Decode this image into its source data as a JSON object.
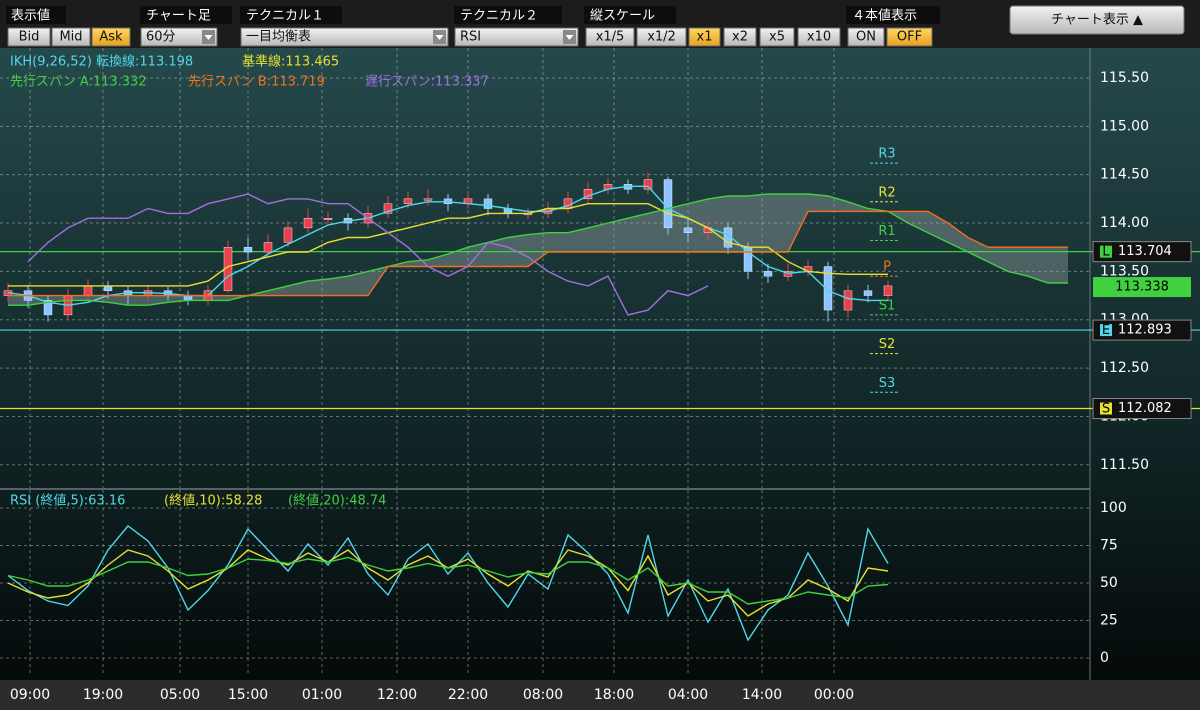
{
  "toolbar": {
    "display_value": {
      "title": "表示値",
      "options": [
        "Bid",
        "Mid",
        "Ask"
      ],
      "selected": 2
    },
    "timeframe": {
      "title": "チャート足",
      "value": "60分"
    },
    "technical1": {
      "title": "テクニカル１",
      "value": "一目均衡表"
    },
    "technical2": {
      "title": "テクニカル２",
      "value": "RSI"
    },
    "vertical_scale": {
      "title": "縦スケール",
      "options": [
        "x1/5",
        "x1/2",
        "x1",
        "x2",
        "x5",
        "x10"
      ],
      "selected": 2
    },
    "ohlc_display": {
      "title": "４本値表示",
      "options": [
        "ON",
        "OFF"
      ],
      "selected": 1
    },
    "chart_toggle": "チャート表示 ▲"
  },
  "chart_data": [
    {
      "type": "candlestick",
      "open": [
        113.25,
        113.3,
        113.2,
        113.05,
        113.25,
        113.35,
        113.3,
        113.25,
        113.3,
        113.25,
        113.2,
        113.3,
        113.75,
        113.7,
        113.8,
        113.95,
        114.05,
        114.05,
        114.0,
        114.1,
        114.2,
        114.25,
        114.25,
        114.2,
        114.25,
        114.15,
        114.1,
        114.1,
        114.15,
        114.25,
        114.35,
        114.4,
        114.35,
        114.45,
        113.95,
        113.9,
        113.95,
        113.75,
        113.5,
        113.45,
        113.5,
        113.55,
        113.1,
        113.3,
        113.25
      ],
      "high": [
        113.38,
        113.36,
        113.25,
        113.32,
        113.42,
        113.4,
        113.35,
        113.36,
        113.34,
        113.3,
        113.36,
        113.82,
        113.85,
        113.88,
        114.02,
        114.15,
        114.12,
        114.1,
        114.18,
        114.28,
        114.32,
        114.35,
        114.3,
        114.33,
        114.3,
        114.2,
        114.16,
        114.22,
        114.32,
        114.42,
        114.46,
        114.45,
        114.52,
        114.48,
        114.05,
        114.02,
        114.0,
        113.8,
        113.58,
        113.58,
        113.62,
        113.6,
        113.36,
        113.36,
        113.4
      ],
      "low": [
        113.18,
        113.12,
        112.98,
        113.0,
        113.2,
        113.22,
        113.15,
        113.2,
        113.2,
        113.15,
        113.15,
        113.28,
        113.62,
        113.65,
        113.75,
        113.9,
        113.98,
        113.92,
        113.95,
        114.05,
        114.15,
        114.18,
        114.12,
        114.15,
        114.08,
        114.05,
        114.04,
        114.05,
        114.1,
        114.2,
        114.3,
        114.3,
        114.3,
        113.88,
        113.8,
        113.82,
        113.68,
        113.42,
        113.38,
        113.4,
        113.45,
        112.98,
        113.02,
        113.18,
        113.2
      ],
      "close": [
        113.3,
        113.2,
        113.05,
        113.25,
        113.35,
        113.3,
        113.25,
        113.3,
        113.25,
        113.2,
        113.3,
        113.75,
        113.7,
        113.8,
        113.95,
        114.05,
        114.05,
        114.0,
        114.1,
        114.2,
        114.25,
        114.25,
        114.2,
        114.25,
        114.15,
        114.1,
        114.1,
        114.15,
        114.25,
        114.35,
        114.4,
        114.35,
        114.45,
        113.95,
        113.9,
        113.95,
        113.75,
        113.5,
        113.45,
        113.5,
        113.55,
        113.1,
        113.3,
        113.25,
        113.35
      ],
      "up_color": "#e8404c",
      "down_color": "#8cc4ff",
      "series": [
        {
          "name": "IKH(9,26,52) 転換線:113.198",
          "color": "#4fd8e8",
          "values": [
            113.28,
            113.25,
            113.18,
            113.15,
            113.18,
            113.25,
            113.28,
            113.28,
            113.27,
            113.25,
            113.25,
            113.45,
            113.55,
            113.68,
            113.78,
            113.88,
            113.98,
            114.02,
            114.05,
            114.12,
            114.18,
            114.22,
            114.22,
            114.2,
            114.18,
            114.15,
            114.12,
            114.12,
            114.18,
            114.28,
            114.35,
            114.38,
            114.38,
            114.15,
            114.05,
            113.95,
            113.88,
            113.7,
            113.55,
            113.48,
            113.5,
            113.3,
            113.22,
            113.2,
            113.2,
            null,
            null,
            null,
            null,
            null,
            null,
            null,
            null,
            null
          ]
        },
        {
          "name": "基準線:113.465",
          "color": "#e8e030",
          "values": [
            113.35,
            113.35,
            113.35,
            113.35,
            113.35,
            113.35,
            113.35,
            113.35,
            113.35,
            113.35,
            113.4,
            113.55,
            113.6,
            113.65,
            113.7,
            113.7,
            113.8,
            113.85,
            113.85,
            113.9,
            113.95,
            114.0,
            114.05,
            114.05,
            114.1,
            114.1,
            114.1,
            114.15,
            114.15,
            114.2,
            114.2,
            114.2,
            114.2,
            114.1,
            114.05,
            113.95,
            113.8,
            113.75,
            113.75,
            113.6,
            113.5,
            113.48,
            113.47,
            113.47,
            113.47,
            null,
            null,
            null,
            null,
            null,
            null,
            null,
            null,
            null
          ]
        },
        {
          "name": "先行スパン A:113.332",
          "color": "#40d040",
          "values": [
            113.15,
            113.15,
            113.18,
            113.2,
            113.2,
            113.18,
            113.15,
            113.15,
            113.18,
            113.2,
            113.2,
            113.2,
            113.25,
            113.3,
            113.35,
            113.4,
            113.42,
            113.45,
            113.5,
            113.55,
            113.6,
            113.62,
            113.68,
            113.75,
            113.8,
            113.85,
            113.88,
            113.9,
            113.9,
            113.95,
            114.0,
            114.05,
            114.1,
            114.15,
            114.2,
            114.25,
            114.28,
            114.28,
            114.3,
            114.3,
            114.3,
            114.28,
            114.22,
            114.15,
            114.12,
            114.0,
            113.9,
            113.8,
            113.7,
            113.6,
            113.5,
            113.45,
            113.38,
            113.38
          ]
        },
        {
          "name": "先行スパン B:113.719",
          "color": "#f07020",
          "values": [
            113.25,
            113.25,
            113.25,
            113.25,
            113.25,
            113.25,
            113.25,
            113.25,
            113.25,
            113.25,
            113.25,
            113.25,
            113.25,
            113.25,
            113.25,
            113.25,
            113.25,
            113.25,
            113.25,
            113.55,
            113.55,
            113.55,
            113.55,
            113.55,
            113.55,
            113.55,
            113.55,
            113.7,
            113.7,
            113.7,
            113.7,
            113.7,
            113.7,
            113.7,
            113.7,
            113.7,
            113.7,
            113.7,
            113.7,
            113.7,
            114.12,
            114.12,
            114.12,
            114.12,
            114.12,
            114.12,
            114.12,
            114.0,
            113.85,
            113.75,
            113.75,
            113.75,
            113.75,
            113.75
          ]
        },
        {
          "name": "遅行スパン:113.337",
          "color": "#a070e0",
          "values": [
            null,
            113.6,
            113.8,
            113.95,
            114.05,
            114.05,
            114.05,
            114.15,
            114.1,
            114.1,
            114.2,
            114.25,
            114.3,
            114.2,
            114.25,
            114.25,
            114.2,
            114.2,
            114.05,
            113.9,
            113.75,
            113.55,
            113.45,
            113.55,
            113.8,
            113.75,
            113.65,
            113.5,
            113.4,
            113.35,
            113.45,
            113.05,
            113.1,
            113.3,
            113.25,
            113.35,
            null,
            null,
            null,
            null,
            null,
            null,
            null,
            null,
            null,
            null,
            null,
            null,
            null,
            null,
            null,
            null,
            null,
            null
          ]
        }
      ],
      "cloud_color": "#b0b8b8",
      "ylim": [
        111.26,
        115.81
      ],
      "yticks": [
        {
          "value": 111.5,
          "label": "111.50"
        },
        {
          "value": 112,
          "label": "112.00"
        },
        {
          "value": 112.5,
          "label": "112.50"
        },
        {
          "value": 113,
          "label": "113.00"
        },
        {
          "value": 113.5,
          "label": "113.50"
        },
        {
          "value": 114,
          "label": "114.00"
        },
        {
          "value": 114.5,
          "label": "114.50"
        },
        {
          "value": 115,
          "label": "115.00"
        },
        {
          "value": 115.5,
          "label": "115.50"
        }
      ],
      "xlim": [
        -0.4,
        54.1
      ],
      "xticks": [
        {
          "value": 1.1,
          "label": "09:00"
        },
        {
          "value": 4.75,
          "label": "19:00"
        },
        {
          "value": 8.6,
          "label": "05:00"
        },
        {
          "value": 12,
          "label": "15:00"
        },
        {
          "value": 15.7,
          "label": "01:00"
        },
        {
          "value": 19.45,
          "label": "12:00"
        },
        {
          "value": 23,
          "label": "22:00"
        },
        {
          "value": 26.75,
          "label": "08:00"
        },
        {
          "value": 30.3,
          "label": "18:00"
        },
        {
          "value": 34,
          "label": "04:00"
        },
        {
          "value": 37.7,
          "label": "14:00"
        },
        {
          "value": 41.3,
          "label": "00:00"
        }
      ],
      "grid": true,
      "levels": [
        {
          "tag": "L",
          "value": 113.704,
          "color": "#40d040"
        },
        {
          "tag": "E",
          "value": 112.893,
          "color": "#4fd8e8"
        },
        {
          "tag": "S",
          "value": 112.082,
          "color": "#e8e030"
        }
      ],
      "current_price": {
        "value": 113.338,
        "color": "#40d040"
      },
      "pivots": [
        {
          "label": "R3",
          "value": 114.62,
          "color": "#4fd8e8"
        },
        {
          "label": "R2",
          "value": 114.22,
          "color": "#e8e030"
        },
        {
          "label": "R1",
          "value": 113.82,
          "color": "#40d040"
        },
        {
          "label": "P",
          "value": 113.45,
          "color": "#f07020"
        },
        {
          "label": "S1",
          "value": 113.05,
          "color": "#40d040"
        },
        {
          "label": "S2",
          "value": 112.65,
          "color": "#e8e030"
        },
        {
          "label": "S3",
          "value": 112.25,
          "color": "#4fd8e8"
        }
      ]
    },
    {
      "type": "line",
      "series": [
        {
          "name": "RSI (終値,5):63.16",
          "color": "#4fd8e8",
          "values": [
            55,
            45,
            38,
            35,
            48,
            72,
            88,
            78,
            60,
            32,
            45,
            62,
            86,
            72,
            58,
            76,
            62,
            80,
            56,
            42,
            66,
            76,
            56,
            70,
            50,
            34,
            56,
            46,
            82,
            70,
            56,
            30,
            82,
            28,
            52,
            24,
            46,
            12,
            32,
            42,
            70,
            48,
            22,
            86,
            63
          ]
        },
        {
          "name": "(終値,10):58.28",
          "color": "#e8e030",
          "values": [
            50,
            44,
            40,
            42,
            50,
            62,
            72,
            68,
            58,
            46,
            52,
            60,
            72,
            66,
            62,
            70,
            64,
            72,
            60,
            52,
            62,
            68,
            60,
            66,
            56,
            48,
            58,
            54,
            72,
            68,
            60,
            45,
            68,
            42,
            50,
            38,
            42,
            28,
            36,
            40,
            52,
            46,
            38,
            60,
            58
          ]
        },
        {
          "name": "(終値,20):48.74",
          "color": "#40d040",
          "values": [
            55,
            52,
            48,
            48,
            52,
            58,
            64,
            64,
            60,
            55,
            56,
            60,
            66,
            65,
            63,
            66,
            64,
            67,
            62,
            58,
            60,
            63,
            60,
            62,
            58,
            54,
            57,
            56,
            64,
            64,
            60,
            52,
            60,
            48,
            50,
            44,
            44,
            36,
            38,
            40,
            44,
            42,
            40,
            48,
            49
          ]
        }
      ],
      "ylim": [
        -12,
        112
      ],
      "yticks": [
        0,
        25,
        50,
        75,
        100
      ],
      "xlim": [
        -0.4,
        54.1
      ],
      "grid": true
    }
  ]
}
